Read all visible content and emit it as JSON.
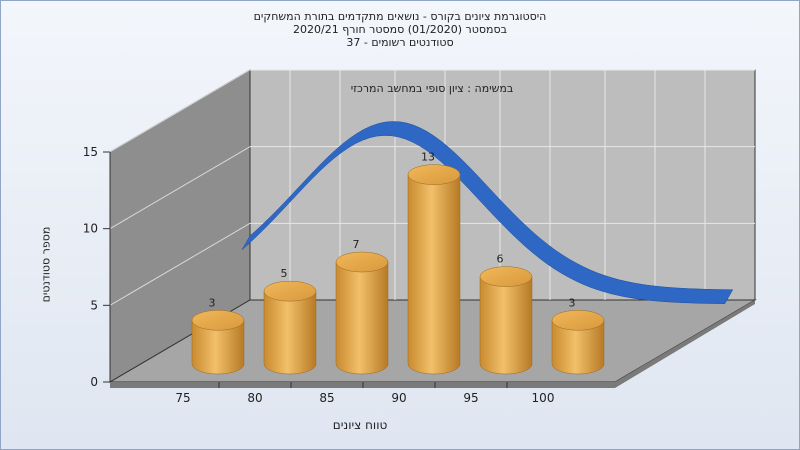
{
  "chart_data": {
    "type": "bar",
    "title_lines": [
      "היסטוגרמת ציונים בקורס - נושאים מתקדמים בתורת המשחקים",
      "בסמסטר  (01/2020)  סמסטר חורף  2020/21",
      "סטודנטים רשומים - 37"
    ],
    "subtitle": "במשימה : ציון סופי במחשב המרכזי",
    "xlabel": "טווח ציונים",
    "ylabel": "מספר סטודנטים",
    "categories": [
      "75",
      "80",
      "85",
      "90",
      "95",
      "100"
    ],
    "values": [
      3,
      5,
      7,
      13,
      6,
      3
    ],
    "y_ticks": [
      "0",
      "5",
      "10",
      "15"
    ],
    "ylim": [
      0,
      15
    ],
    "grid": true,
    "overlay": "normal-distribution curve",
    "colors": {
      "bar": "#e0a040",
      "curve": "#2f68c4",
      "wall": "#bdbdbd",
      "floor": "#a6a6a6"
    }
  }
}
